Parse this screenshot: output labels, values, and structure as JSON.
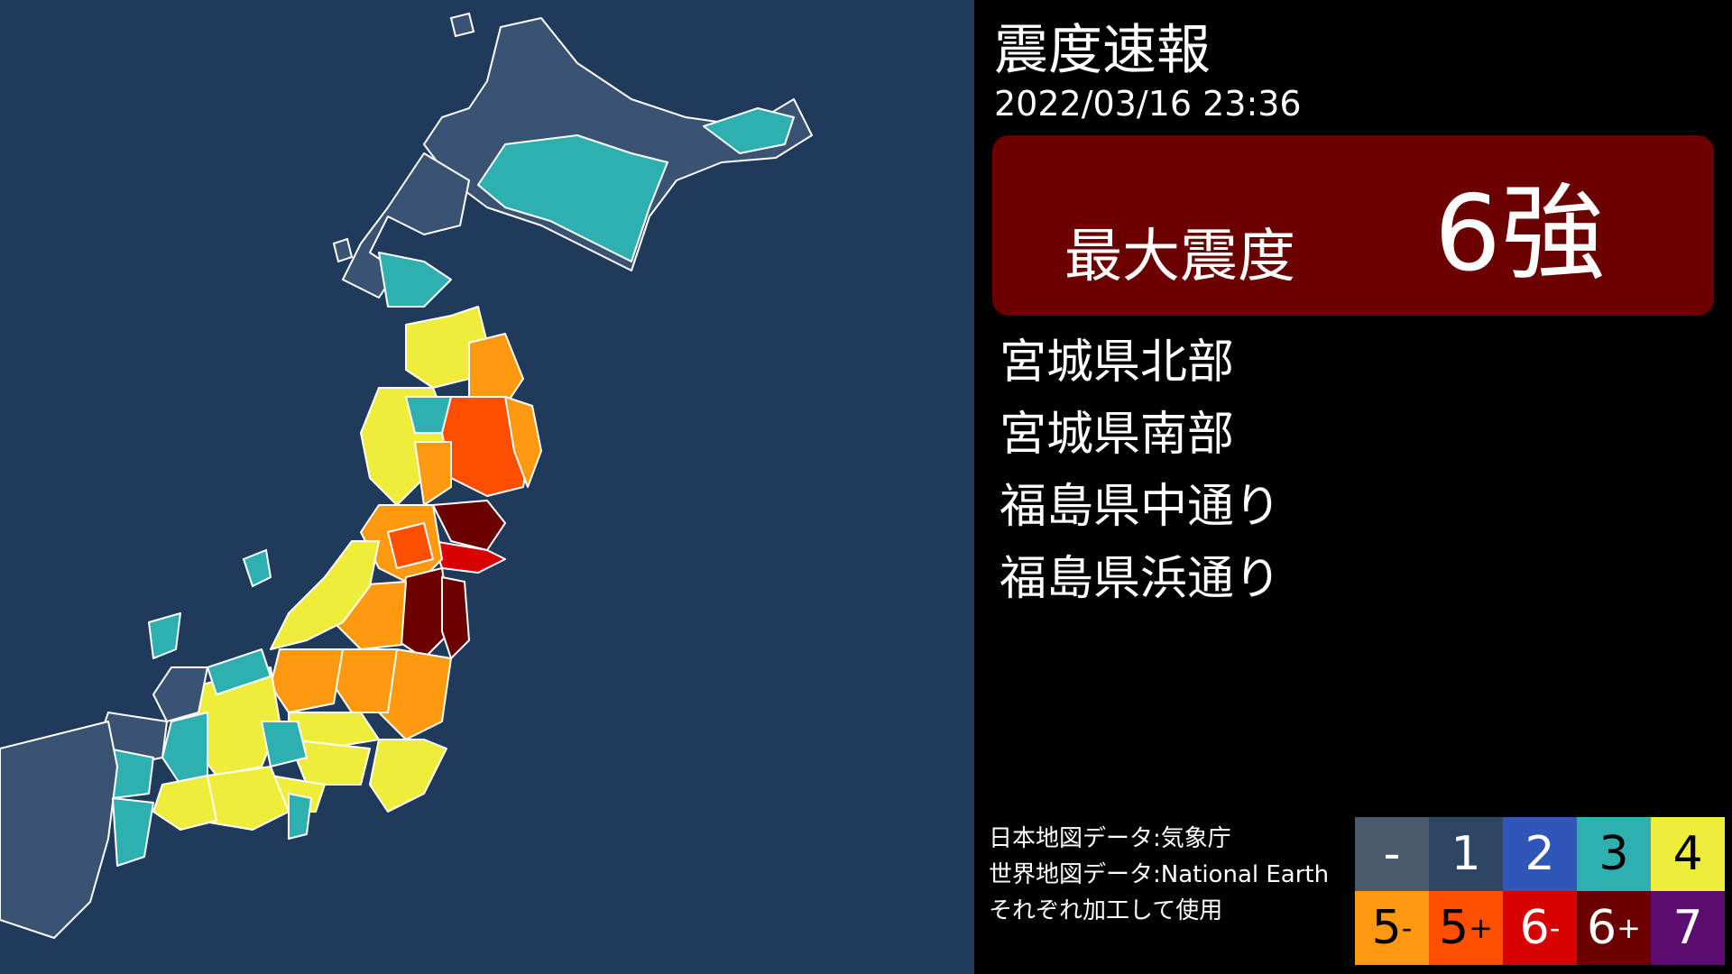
{
  "header": {
    "title": "震度速報",
    "datetime": "2022/03/16 23:36"
  },
  "max_intensity": {
    "label": "最大震度",
    "value": "6強",
    "color": "#6b0000"
  },
  "regions": [
    {
      "name": "宮城県北部"
    },
    {
      "name": "宮城県南部"
    },
    {
      "name": "福島県中通り"
    },
    {
      "name": "福島県浜通り"
    }
  ],
  "credits": {
    "line1": "日本地図データ:気象庁",
    "line2": "世界地図データ:National Earth",
    "line3": "それぞれ加工して使用"
  },
  "legend": [
    {
      "label": "-",
      "sup": "",
      "bg": "#4a5a6c",
      "fg": "#ffffff"
    },
    {
      "label": "1",
      "sup": "",
      "bg": "#2e4563",
      "fg": "#ffffff"
    },
    {
      "label": "2",
      "sup": "",
      "bg": "#2f56b8",
      "fg": "#ffffff"
    },
    {
      "label": "3",
      "sup": "",
      "bg": "#2fb0b0",
      "fg": "#000000"
    },
    {
      "label": "4",
      "sup": "",
      "bg": "#eeee3a",
      "fg": "#000000"
    },
    {
      "label": "5",
      "sup": "-",
      "bg": "#ff9a10",
      "fg": "#000000"
    },
    {
      "label": "5",
      "sup": "+",
      "bg": "#ff4e00",
      "fg": "#000000"
    },
    {
      "label": "6",
      "sup": "-",
      "bg": "#d80000",
      "fg": "#ffffff"
    },
    {
      "label": "6",
      "sup": "+",
      "bg": "#6b0000",
      "fg": "#ffffff"
    },
    {
      "label": "7",
      "sup": "",
      "bg": "#5a0d6e",
      "fg": "#ffffff"
    }
  ],
  "map": {
    "sea_color": "#1f3a5a",
    "border_color": "#ffffff"
  }
}
